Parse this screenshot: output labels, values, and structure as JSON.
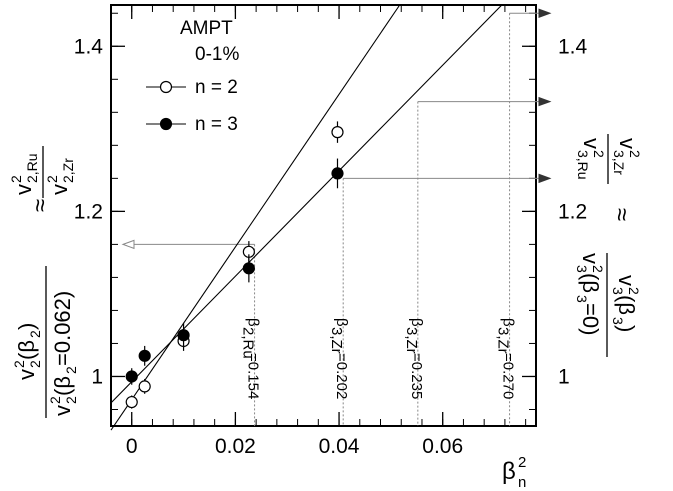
{
  "chart_data": {
    "type": "scatter",
    "legend_title": "AMPT",
    "legend_subtitle": "0-1%",
    "legend_placement": "top-left",
    "xlabel": "β_n^2",
    "ylabel_left": "v_{2,Ru}^2 / v_{2,Zr}^2 ≈ v_2^2(β_2) / v_2^2(β_2=0.062)",
    "ylabel_right": "v_{3,Zr}^2 / v_{3,Ru}^2 ≈ v_3^2(β_3) / v_3^2(β_3=0)",
    "xlim": [
      -0.004,
      0.078
    ],
    "ylim": [
      0.94,
      1.45
    ],
    "x_ticks": [
      "0",
      "0.02",
      "0.04",
      "0.06"
    ],
    "y_ticks": [
      "1",
      "1.2",
      "1.4"
    ],
    "grid": false,
    "series": [
      {
        "name": "n = 2",
        "marker": "open-circle",
        "points": [
          {
            "x": 0.0,
            "y": 0.969,
            "err": 0.008
          },
          {
            "x": 0.0025,
            "y": 0.988,
            "err": 0.009
          },
          {
            "x": 0.01,
            "y": 1.043,
            "err": 0.012
          },
          {
            "x": 0.0226,
            "y": 1.151,
            "err": 0.013
          },
          {
            "x": 0.0397,
            "y": 1.296,
            "err": 0.013
          }
        ],
        "fit": {
          "x1": -0.004,
          "y1": 0.935,
          "x2": 0.0517,
          "y2": 1.45
        }
      },
      {
        "name": "n = 3",
        "marker": "filled-circle",
        "points": [
          {
            "x": 0.0,
            "y": 1.0,
            "err": 0.01
          },
          {
            "x": 0.0025,
            "y": 1.025,
            "err": 0.012
          },
          {
            "x": 0.01,
            "y": 1.05,
            "err": 0.015
          },
          {
            "x": 0.0226,
            "y": 1.131,
            "err": 0.017
          },
          {
            "x": 0.0397,
            "y": 1.246,
            "err": 0.018
          }
        ],
        "fit": {
          "x1": -0.004,
          "y1": 0.968,
          "x2": 0.0714,
          "y2": 1.45
        }
      }
    ],
    "annotations": [
      {
        "x": 0.0237,
        "label_base": "β",
        "label_sub": "2,Ru",
        "label_val": "=0.154"
      },
      {
        "x": 0.0408,
        "label_base": "β",
        "label_sub": "3,Zr",
        "label_val": "=0.202"
      },
      {
        "x": 0.0552,
        "label_base": "β",
        "label_sub": "3,Zr",
        "label_val": "=0.235"
      },
      {
        "x": 0.0729,
        "label_base": "β",
        "label_sub": "3,Zr",
        "label_val": "=0.270"
      }
    ],
    "arrows": [
      {
        "x_from": 0.0237,
        "y": 1.16,
        "direction": "left",
        "style": "open"
      },
      {
        "x_from": 0.0408,
        "y": 1.24,
        "direction": "right",
        "style": "filled"
      },
      {
        "x_from": 0.0552,
        "y": 1.333,
        "direction": "right",
        "style": "filled"
      },
      {
        "x_from": 0.0729,
        "y": 1.44,
        "direction": "right",
        "style": "filled"
      }
    ]
  }
}
